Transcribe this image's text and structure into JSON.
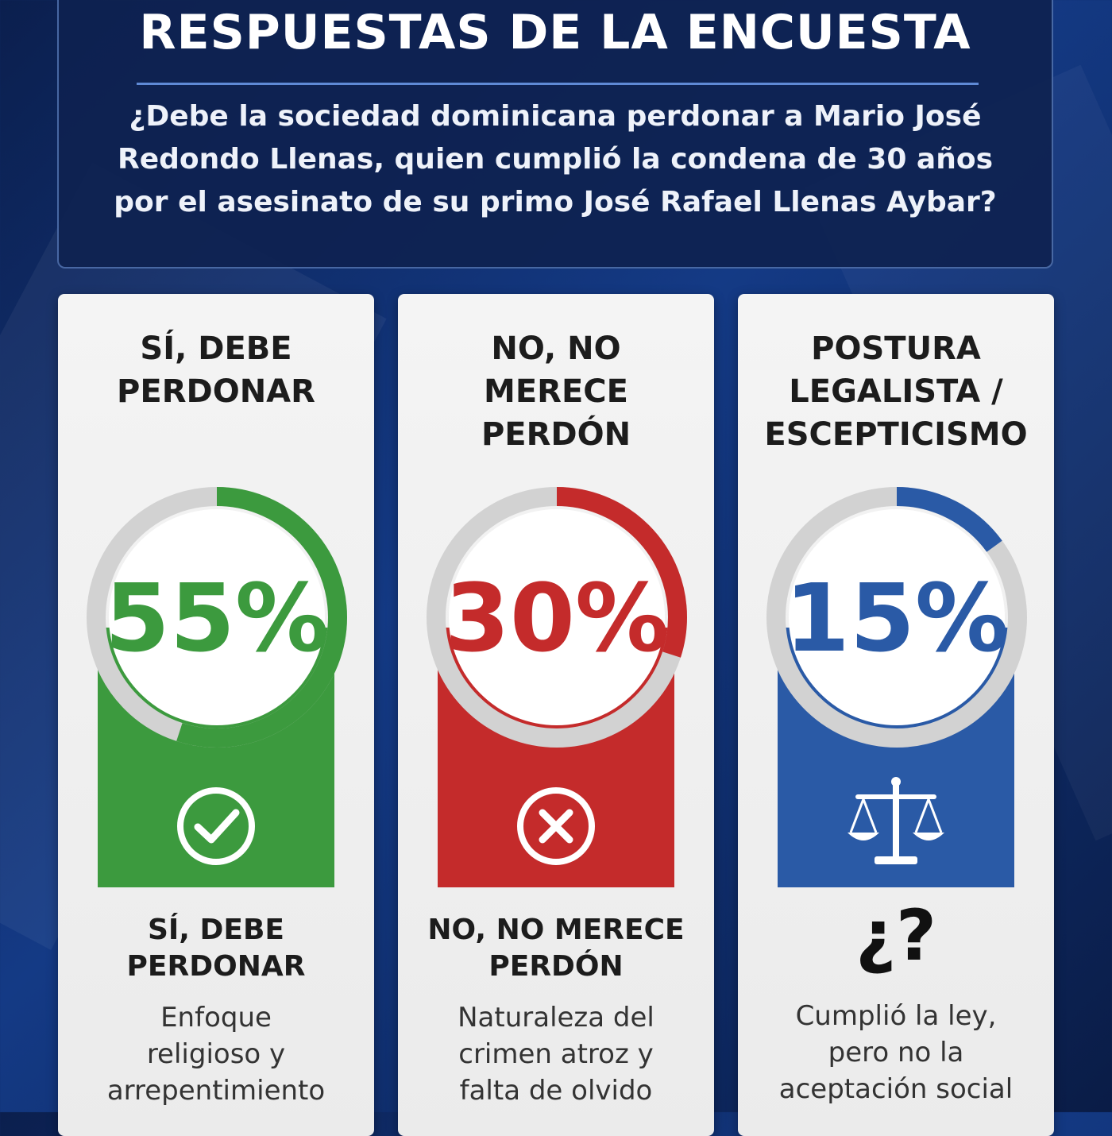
{
  "header": {
    "title": "RESPUESTAS DE LA ENCUESTA",
    "question_lines": [
      "¿Debe la sociedad dominicana perdonar a Mario José",
      "Redondo Llenas, quien cumplió la condena de 30 años",
      "por el asesinato de su primo José Rafael Llenas Aybar?"
    ]
  },
  "cards": [
    {
      "title_lines": [
        "SÍ, DEBE",
        "PERDONAR"
      ],
      "percent_label": "55%",
      "icon": "check-circle-icon",
      "subtitle_lines": [
        "SÍ, DEBE",
        "PERDONAR"
      ],
      "description_lines": [
        "Enfoque",
        "religioso y",
        "arrepentimiento"
      ]
    },
    {
      "title_lines": [
        "NO, NO",
        "MERECE",
        "PERDÓN"
      ],
      "percent_label": "30%",
      "icon": "x-circle-icon",
      "subtitle_lines": [
        "NO, NO MERECE",
        "PERDÓN"
      ],
      "description_lines": [
        "Naturaleza del",
        "crimen atroz y",
        "falta de olvido"
      ]
    },
    {
      "title_lines": [
        "POSTURA",
        "LEGALISTA /",
        "ESCEPTICISMO"
      ],
      "percent_label": "15%",
      "icon": "scales-icon",
      "symbol": "¿?",
      "description_lines": [
        "Cumplió la ley,",
        "pero no la",
        "aceptación social"
      ]
    }
  ],
  "chart_data": {
    "type": "pie",
    "categories": [
      "SÍ, DEBE PERDONAR",
      "NO, NO MERECE PERDÓN",
      "POSTURA LEGALISTA / ESCEPTICISMO"
    ],
    "values": [
      55,
      30,
      15
    ],
    "unit": "%",
    "title": "RESPUESTAS DE LA ENCUESTA",
    "colors": [
      "#3c9a3e",
      "#c42b2b",
      "#2a5aa6"
    ],
    "track_color": "#d2d2d2"
  }
}
